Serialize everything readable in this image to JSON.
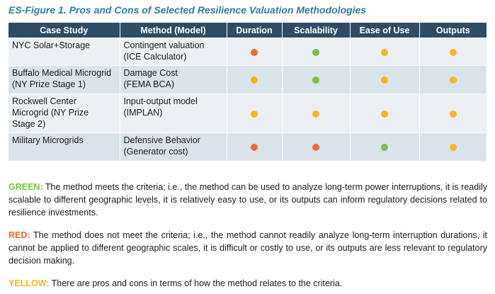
{
  "title": "ES-Figure 1. Pros and Cons of Selected Resilience Valuation Methodologies",
  "colors": {
    "header_bg": "#2f4c66",
    "red": "#ef6a2c",
    "yellow": "#f6b61c",
    "green": "#7bbf3e",
    "title": "#2e7a99"
  },
  "table": {
    "headers": [
      "Case Study",
      "Method (Model)",
      "Duration",
      "Scalability",
      "Ease of Use",
      "Outputs"
    ],
    "rows": [
      {
        "case_lines": [
          "NYC Solar+Storage"
        ],
        "method_lines": [
          "Contingent valuation",
          "(ICE Calculator)"
        ],
        "ratings": [
          "red",
          "green",
          "yellow",
          "yellow"
        ]
      },
      {
        "case_lines": [
          "Buffalo Medical Microgrid",
          "(NY Prize Stage 1)"
        ],
        "method_lines": [
          "Damage Cost",
          "(FEMA BCA)"
        ],
        "ratings": [
          "yellow",
          "green",
          "yellow",
          "yellow"
        ]
      },
      {
        "case_lines": [
          "Rockwell Center",
          "Microgrid (NY Prize",
          "Stage 2)"
        ],
        "method_lines": [
          "Input-output model",
          "(IMPLAN)"
        ],
        "ratings": [
          "yellow",
          "yellow",
          "yellow",
          "yellow"
        ]
      },
      {
        "case_lines": [
          "Military Microgrids"
        ],
        "method_lines": [
          "Defensive Behavior",
          "(Generator cost)"
        ],
        "ratings": [
          "red",
          "red",
          "green",
          "yellow"
        ]
      }
    ]
  },
  "legend": [
    {
      "key": "green",
      "label": "GREEN:",
      "text": "The method meets the criteria; i.e., the method can be used to analyze long-term power interruptions, it is readily scalable to different geographic levels, it is relatively easy to use, or its outputs can inform regulatory decisions related to resilience investments."
    },
    {
      "key": "red",
      "label": "RED:",
      "text": "The method does not meet the criteria; i.e., the method cannot readily analyze long-term interruption durations, it cannot be applied to different geographic scales, it is difficult or costly to use, or its outputs are less relevant to regulatory decision making."
    },
    {
      "key": "yellow",
      "label": "YELLOW:",
      "text": "There are pros and cons in terms of how the method relates to the criteria."
    }
  ]
}
